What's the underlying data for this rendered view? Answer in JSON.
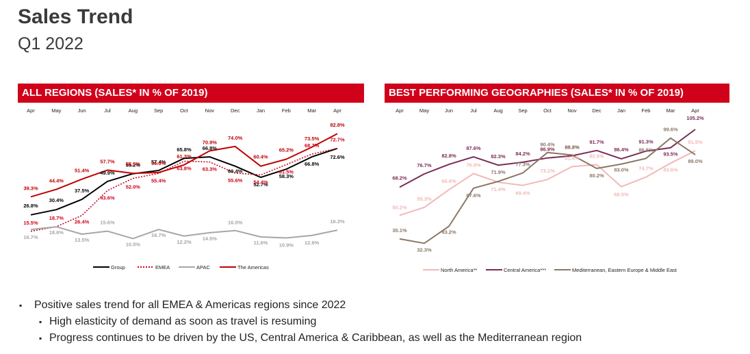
{
  "title": "Sales Trend",
  "subtitle": "Q1 2022",
  "bullets": {
    "main": "Positive sales trend for all EMEA & Americas regions since 2022",
    "sub1": "High elasticity of demand as soon as travel is resuming",
    "sub2": "Progress continues to be driven by the US, Central America & Caribbean, as well as the Mediterranean region"
  },
  "chart_data": [
    {
      "type": "line",
      "title": "ALL REGIONS (SALES* IN % OF 2019)",
      "categories": [
        "Apr",
        "May",
        "Jun",
        "Jul",
        "Aug",
        "Sep",
        "Oct",
        "Nov",
        "Dec",
        "Jan",
        "Feb",
        "Mar",
        "Apr"
      ],
      "ylim": [
        5,
        90
      ],
      "legend": "bottom",
      "series": [
        {
          "name": "Group",
          "color": "#000000",
          "dash": "solid",
          "values": [
            26.8,
            30.4,
            37.5,
            49.9,
            55.2,
            57.4,
            65.8,
            66.8,
            60.4,
            52.7,
            58.3,
            66.8,
            72.6
          ],
          "labels": [
            "26.8%",
            "30.4%",
            "37.5%",
            "49.9%",
            "55.2%",
            "57.4%",
            "65.8%",
            "66.8%",
            "60.4%",
            "52.7%",
            "58.3%",
            "66.8%",
            "72.6%"
          ]
        },
        {
          "name": "EMEA",
          "color": "#d0021b",
          "dash": "dotted",
          "values": [
            15.5,
            18.7,
            26.4,
            43.6,
            52.0,
            55.4,
            63.8,
            63.3,
            55.6,
            54.4,
            61.5,
            68.7,
            72.7
          ],
          "labels": [
            "15.5%",
            "18.7%",
            "26.4%",
            "43.6%",
            "52.0%",
            "55.4%",
            "63.8%",
            "63.3%",
            "55.6%",
            "54.4%",
            "61.5%",
            "68.7%",
            "72.7%"
          ]
        },
        {
          "name": "APAC",
          "color": "#a6a6a6",
          "dash": "solid",
          "values": [
            16.7,
            18.6,
            13.5,
            15.6,
            10.5,
            16.7,
            12.2,
            14.5,
            16.0,
            11.6,
            10.9,
            12.6,
            16.3
          ],
          "labels": [
            "16.7%",
            "18.6%",
            "13.5%",
            "15.6%",
            "10.5%",
            "16.7%",
            "12.2%",
            "14.5%",
            "16.0%",
            "11.6%",
            "10.9%",
            "12.6%",
            "16.3%"
          ]
        },
        {
          "name": "The Americas",
          "color": "#c00000",
          "dash": "solid",
          "values": [
            39.3,
            44.4,
            51.4,
            57.7,
            55.5,
            56.0,
            61.3,
            70.9,
            74.0,
            60.4,
            65.2,
            73.5,
            82.8
          ],
          "labels": [
            "39.3%",
            "44.4%",
            "51.4%",
            "57.7%",
            "55.5%",
            "56.0%",
            "61.3%",
            "70.9%",
            "74.0%",
            "60.4%",
            "65.2%",
            "73.5%",
            "82.8%"
          ]
        }
      ]
    },
    {
      "type": "line",
      "title": "BEST PERFORMING GEOGRAPHIES (SALES* IN % OF 2019)",
      "categories": [
        "Apr",
        "May",
        "Jun",
        "Jul",
        "Aug",
        "Sep",
        "Oct",
        "Nov",
        "Dec",
        "Jan",
        "Feb",
        "Mar",
        "Apr"
      ],
      "ylim": [
        25,
        110
      ],
      "legend": "bottom",
      "series": [
        {
          "name": "North America**",
          "color": "#f2b8b8",
          "dash": "solid",
          "values": [
            50.2,
            55.3,
            66.6,
            76.9,
            71.4,
            69.4,
            73.1,
            81.4,
            82.6,
            68.5,
            74.7,
            83.6,
            91.5
          ],
          "labels": [
            "50.2%",
            "55.3%",
            "66.6%",
            "76.9%",
            "71.4%",
            "69.4%",
            "73.1%",
            "81.4%",
            "82.6%",
            "68.5%",
            "74.7%",
            "83.6%",
            "91.5%"
          ]
        },
        {
          "name": "Central America***",
          "color": "#7b2a55",
          "dash": "solid",
          "values": [
            68.2,
            76.7,
            82.8,
            87.6,
            82.3,
            84.2,
            86.9,
            88.3,
            91.7,
            86.4,
            91.3,
            93.5,
            105.2
          ],
          "labels": [
            "68.2%",
            "76.7%",
            "82.8%",
            "87.6%",
            "82.3%",
            "84.2%",
            "86.9%",
            "88.3%",
            "91.7%",
            "86.4%",
            "91.3%",
            "93.5%",
            "105.2%"
          ]
        },
        {
          "name": "Mediterranean, Eastern Europe & Middle East",
          "color": "#8b7765",
          "dash": "solid",
          "values": [
            35.1,
            32.3,
            43.2,
            67.6,
            71.9,
            77.3,
            90.4,
            88.8,
            80.2,
            83.0,
            86.6,
            99.6,
            89.0
          ],
          "labels": [
            "35.1%",
            "32.3%",
            "43.2%",
            "67.6%",
            "71.9%",
            "77.3%",
            "90.4%",
            "88.8%",
            "80.2%",
            "83.0%",
            "86.6%",
            "99.6%",
            "89.0%"
          ]
        }
      ]
    }
  ]
}
